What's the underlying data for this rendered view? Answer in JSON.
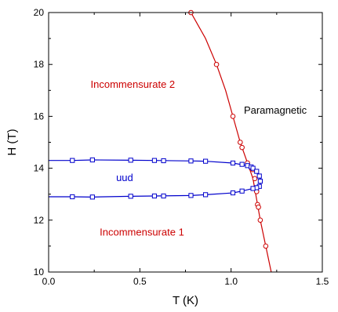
{
  "chart_data": {
    "type": "line",
    "xlabel": "T (K)",
    "ylabel": "H (T)",
    "xlim": [
      0.0,
      1.5
    ],
    "ylim": [
      10,
      20
    ],
    "x_ticks": [
      0.0,
      0.5,
      1.0,
      1.5
    ],
    "x_tick_labels": [
      "0.0",
      "0.5",
      "1.0",
      "1.5"
    ],
    "y_ticks": [
      10,
      12,
      14,
      16,
      18,
      20
    ],
    "y_tick_labels": [
      "10",
      "12",
      "14",
      "16",
      "18",
      "20"
    ],
    "grid": false,
    "legend": "none",
    "annotations": [
      {
        "text": "Incommensurate 2",
        "x": 0.23,
        "y": 17.1,
        "color": "#cc0000"
      },
      {
        "text": "Paramagnetic",
        "x": 1.07,
        "y": 16.1,
        "color": "#000000"
      },
      {
        "text": "uud",
        "x": 0.37,
        "y": 13.5,
        "color": "#0000cc"
      },
      {
        "text": "Incommensurate 1",
        "x": 0.28,
        "y": 11.4,
        "color": "#cc0000"
      }
    ],
    "series": [
      {
        "color": "#cc0000",
        "marker": "circle",
        "points": [
          [
            0.78,
            20.0
          ],
          [
            0.92,
            18.0
          ],
          [
            1.01,
            16.0
          ],
          [
            1.05,
            15.0
          ],
          [
            1.06,
            14.8
          ],
          [
            1.09,
            14.2
          ],
          [
            1.12,
            13.95
          ],
          [
            1.13,
            13.6
          ],
          [
            1.14,
            13.1
          ],
          [
            1.145,
            12.6
          ],
          [
            1.15,
            12.5
          ],
          [
            1.16,
            12.0
          ],
          [
            1.19,
            11.0
          ]
        ],
        "curve": [
          [
            0.78,
            20.0
          ],
          [
            0.86,
            19.0
          ],
          [
            0.92,
            18.0
          ],
          [
            0.97,
            17.0
          ],
          [
            1.01,
            16.0
          ],
          [
            1.05,
            15.0
          ],
          [
            1.09,
            14.2
          ],
          [
            1.12,
            13.6
          ],
          [
            1.145,
            12.6
          ],
          [
            1.16,
            12.0
          ],
          [
            1.19,
            11.0
          ],
          [
            1.22,
            10.0
          ]
        ]
      },
      {
        "color": "#0000cc",
        "marker": "square",
        "points": [
          [
            0.13,
            14.3
          ],
          [
            0.24,
            14.32
          ],
          [
            0.45,
            14.31
          ],
          [
            0.58,
            14.3
          ],
          [
            0.63,
            14.29
          ],
          [
            0.78,
            14.28
          ],
          [
            0.86,
            14.27
          ],
          [
            1.01,
            14.2
          ],
          [
            1.06,
            14.15
          ],
          [
            1.09,
            14.1
          ],
          [
            1.11,
            14.05
          ],
          [
            1.12,
            14.0
          ],
          [
            1.14,
            13.88
          ],
          [
            1.155,
            13.7
          ],
          [
            1.16,
            13.5
          ],
          [
            1.155,
            13.3
          ],
          [
            1.14,
            13.25
          ],
          [
            1.12,
            13.22
          ],
          [
            1.06,
            13.12
          ],
          [
            1.01,
            13.05
          ],
          [
            0.86,
            12.98
          ],
          [
            0.78,
            12.95
          ],
          [
            0.63,
            12.93
          ],
          [
            0.58,
            12.93
          ],
          [
            0.45,
            12.92
          ],
          [
            0.24,
            12.89
          ],
          [
            0.13,
            12.9
          ]
        ],
        "curve": [
          [
            0.0,
            14.3
          ],
          [
            0.13,
            14.3
          ],
          [
            0.24,
            14.32
          ],
          [
            0.45,
            14.31
          ],
          [
            0.58,
            14.3
          ],
          [
            0.78,
            14.28
          ],
          [
            0.86,
            14.27
          ],
          [
            1.01,
            14.2
          ],
          [
            1.09,
            14.1
          ],
          [
            1.12,
            14.0
          ],
          [
            1.14,
            13.88
          ],
          [
            1.155,
            13.7
          ],
          [
            1.165,
            13.5
          ],
          [
            1.155,
            13.3
          ],
          [
            1.12,
            13.22
          ],
          [
            1.06,
            13.12
          ],
          [
            1.01,
            13.05
          ],
          [
            0.86,
            12.98
          ],
          [
            0.78,
            12.95
          ],
          [
            0.58,
            12.93
          ],
          [
            0.45,
            12.92
          ],
          [
            0.24,
            12.89
          ],
          [
            0.13,
            12.9
          ],
          [
            0.0,
            12.9
          ]
        ]
      }
    ]
  }
}
